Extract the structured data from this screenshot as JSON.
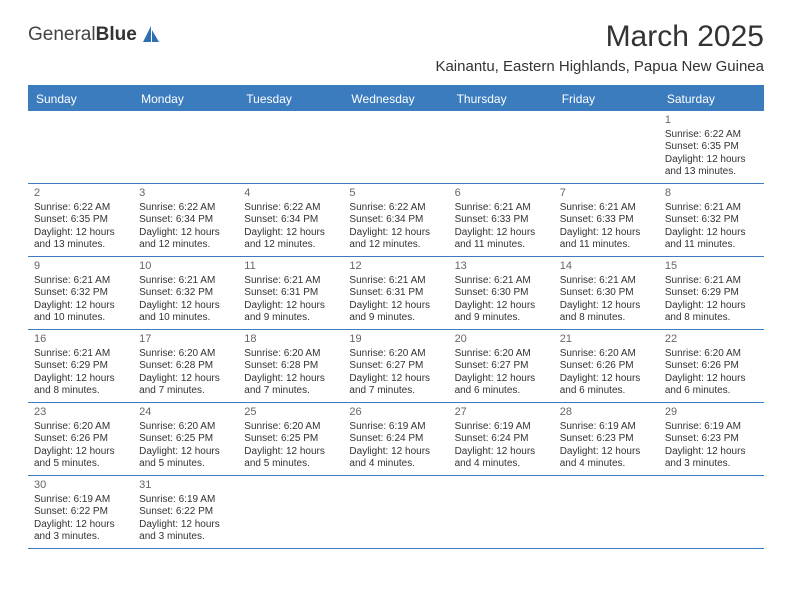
{
  "logo": {
    "brand_a": "General",
    "brand_b": "Blue"
  },
  "title": "March 2025",
  "location": "Kainantu, Eastern Highlands, Papua New Guinea",
  "colors": {
    "header_bar": "#3b7cbf",
    "header_text": "#ffffff",
    "grid_line": "#3b7cbf",
    "text": "#333333",
    "daynum": "#666666",
    "background": "#ffffff",
    "logo_accent": "#2f6fb0"
  },
  "days_of_week": [
    "Sunday",
    "Monday",
    "Tuesday",
    "Wednesday",
    "Thursday",
    "Friday",
    "Saturday"
  ],
  "first_weekday_index": 6,
  "days": [
    {
      "n": 1,
      "sunrise": "6:22 AM",
      "sunset": "6:35 PM",
      "daylight": "12 hours and 13 minutes."
    },
    {
      "n": 2,
      "sunrise": "6:22 AM",
      "sunset": "6:35 PM",
      "daylight": "12 hours and 13 minutes."
    },
    {
      "n": 3,
      "sunrise": "6:22 AM",
      "sunset": "6:34 PM",
      "daylight": "12 hours and 12 minutes."
    },
    {
      "n": 4,
      "sunrise": "6:22 AM",
      "sunset": "6:34 PM",
      "daylight": "12 hours and 12 minutes."
    },
    {
      "n": 5,
      "sunrise": "6:22 AM",
      "sunset": "6:34 PM",
      "daylight": "12 hours and 12 minutes."
    },
    {
      "n": 6,
      "sunrise": "6:21 AM",
      "sunset": "6:33 PM",
      "daylight": "12 hours and 11 minutes."
    },
    {
      "n": 7,
      "sunrise": "6:21 AM",
      "sunset": "6:33 PM",
      "daylight": "12 hours and 11 minutes."
    },
    {
      "n": 8,
      "sunrise": "6:21 AM",
      "sunset": "6:32 PM",
      "daylight": "12 hours and 11 minutes."
    },
    {
      "n": 9,
      "sunrise": "6:21 AM",
      "sunset": "6:32 PM",
      "daylight": "12 hours and 10 minutes."
    },
    {
      "n": 10,
      "sunrise": "6:21 AM",
      "sunset": "6:32 PM",
      "daylight": "12 hours and 10 minutes."
    },
    {
      "n": 11,
      "sunrise": "6:21 AM",
      "sunset": "6:31 PM",
      "daylight": "12 hours and 9 minutes."
    },
    {
      "n": 12,
      "sunrise": "6:21 AM",
      "sunset": "6:31 PM",
      "daylight": "12 hours and 9 minutes."
    },
    {
      "n": 13,
      "sunrise": "6:21 AM",
      "sunset": "6:30 PM",
      "daylight": "12 hours and 9 minutes."
    },
    {
      "n": 14,
      "sunrise": "6:21 AM",
      "sunset": "6:30 PM",
      "daylight": "12 hours and 8 minutes."
    },
    {
      "n": 15,
      "sunrise": "6:21 AM",
      "sunset": "6:29 PM",
      "daylight": "12 hours and 8 minutes."
    },
    {
      "n": 16,
      "sunrise": "6:21 AM",
      "sunset": "6:29 PM",
      "daylight": "12 hours and 8 minutes."
    },
    {
      "n": 17,
      "sunrise": "6:20 AM",
      "sunset": "6:28 PM",
      "daylight": "12 hours and 7 minutes."
    },
    {
      "n": 18,
      "sunrise": "6:20 AM",
      "sunset": "6:28 PM",
      "daylight": "12 hours and 7 minutes."
    },
    {
      "n": 19,
      "sunrise": "6:20 AM",
      "sunset": "6:27 PM",
      "daylight": "12 hours and 7 minutes."
    },
    {
      "n": 20,
      "sunrise": "6:20 AM",
      "sunset": "6:27 PM",
      "daylight": "12 hours and 6 minutes."
    },
    {
      "n": 21,
      "sunrise": "6:20 AM",
      "sunset": "6:26 PM",
      "daylight": "12 hours and 6 minutes."
    },
    {
      "n": 22,
      "sunrise": "6:20 AM",
      "sunset": "6:26 PM",
      "daylight": "12 hours and 6 minutes."
    },
    {
      "n": 23,
      "sunrise": "6:20 AM",
      "sunset": "6:26 PM",
      "daylight": "12 hours and 5 minutes."
    },
    {
      "n": 24,
      "sunrise": "6:20 AM",
      "sunset": "6:25 PM",
      "daylight": "12 hours and 5 minutes."
    },
    {
      "n": 25,
      "sunrise": "6:20 AM",
      "sunset": "6:25 PM",
      "daylight": "12 hours and 5 minutes."
    },
    {
      "n": 26,
      "sunrise": "6:19 AM",
      "sunset": "6:24 PM",
      "daylight": "12 hours and 4 minutes."
    },
    {
      "n": 27,
      "sunrise": "6:19 AM",
      "sunset": "6:24 PM",
      "daylight": "12 hours and 4 minutes."
    },
    {
      "n": 28,
      "sunrise": "6:19 AM",
      "sunset": "6:23 PM",
      "daylight": "12 hours and 4 minutes."
    },
    {
      "n": 29,
      "sunrise": "6:19 AM",
      "sunset": "6:23 PM",
      "daylight": "12 hours and 3 minutes."
    },
    {
      "n": 30,
      "sunrise": "6:19 AM",
      "sunset": "6:22 PM",
      "daylight": "12 hours and 3 minutes."
    },
    {
      "n": 31,
      "sunrise": "6:19 AM",
      "sunset": "6:22 PM",
      "daylight": "12 hours and 3 minutes."
    }
  ],
  "labels": {
    "sunrise": "Sunrise:",
    "sunset": "Sunset:",
    "daylight": "Daylight:"
  }
}
